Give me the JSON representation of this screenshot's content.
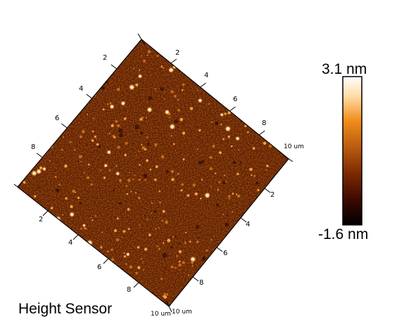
{
  "image": {
    "channel_label": "Height Sensor",
    "colorbar": {
      "max_label": "3.1 nm",
      "min_label": "-1.6 nm",
      "colormap": [
        "#000000",
        "#3a0800",
        "#7a2800",
        "#b85a10",
        "#f08c1a",
        "#ffd9a0",
        "#ffffff"
      ]
    },
    "axes": {
      "upper_right_edge": {
        "ticks": [
          "2",
          "4",
          "6",
          "8"
        ],
        "end_label": "10 um"
      },
      "upper_left_edge": {
        "ticks": [
          "2",
          "4",
          "6",
          "8"
        ]
      },
      "lower_left_edge": {
        "ticks": [
          "2",
          "4",
          "6",
          "8"
        ],
        "end_label": "10 um"
      },
      "lower_right_edge": {
        "ticks": [
          "2",
          "4",
          "6",
          "8"
        ],
        "end_label": "10 um"
      }
    },
    "surface": {
      "base_color": "#5e1c00",
      "particle_color": "#ffe3b0"
    }
  }
}
